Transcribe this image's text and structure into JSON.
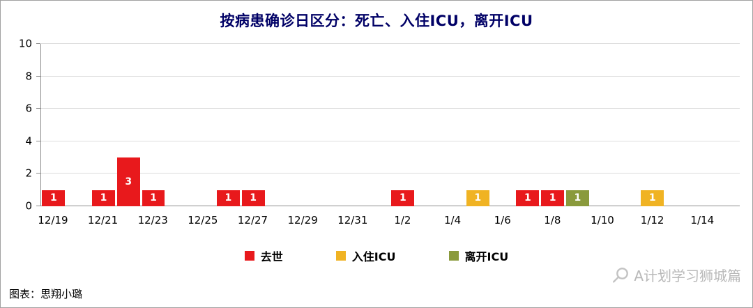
{
  "footer": {
    "source": "图表：思翔小璐"
  },
  "watermark": {
    "text": "A计划学习狮城篇",
    "icon": "magnifier-icon"
  },
  "colors": {
    "deaths": "#e8191c",
    "icu_in": "#f0b323",
    "icu_out": "#8a9a3c",
    "title": "#000066",
    "gridline": "#dcdcdc"
  },
  "legend": [
    {
      "key": "deaths",
      "label": "去世",
      "color": "#e8191c"
    },
    {
      "key": "icu-in",
      "label": "入住ICU",
      "color": "#f0b323"
    },
    {
      "key": "icu-out",
      "label": "离开ICU",
      "color": "#8a9a3c"
    }
  ],
  "chart_data": {
    "type": "bar",
    "title": "按病患确诊日区分：死亡、入住ICU，离开ICU",
    "categories": [
      "12/19",
      "12/20",
      "12/21",
      "12/22",
      "12/23",
      "12/24",
      "12/25",
      "12/26",
      "12/27",
      "12/28",
      "12/29",
      "12/30",
      "12/31",
      "1/1",
      "1/2",
      "1/3",
      "1/4",
      "1/5",
      "1/6",
      "1/7",
      "1/8",
      "1/9",
      "1/10",
      "1/11",
      "1/12",
      "1/13",
      "1/14",
      "1/15"
    ],
    "x_tick_every": 2,
    "x_tick_labels": [
      "12/19",
      "12/21",
      "12/23",
      "12/25",
      "12/27",
      "12/29",
      "12/31",
      "1/2",
      "1/4",
      "1/6",
      "1/8",
      "1/10",
      "1/12",
      "1/14"
    ],
    "ylim": [
      0,
      10
    ],
    "yticks": [
      0,
      2,
      4,
      6,
      8,
      10
    ],
    "grid": true,
    "legend_position": "bottom",
    "bar_value_labels": true,
    "series": [
      {
        "name": "去世",
        "key": "deaths",
        "color": "#e8191c",
        "values": [
          1,
          0,
          1,
          3,
          1,
          0,
          0,
          1,
          1,
          0,
          0,
          0,
          0,
          0,
          1,
          0,
          0,
          0,
          0,
          1,
          1,
          0,
          0,
          0,
          0,
          0,
          0,
          0
        ]
      },
      {
        "name": "入住ICU",
        "key": "icu-in",
        "color": "#f0b323",
        "values": [
          0,
          0,
          0,
          0,
          0,
          0,
          0,
          0,
          0,
          0,
          0,
          0,
          0,
          0,
          0,
          0,
          0,
          1,
          0,
          0,
          0,
          0,
          0,
          0,
          1,
          0,
          0,
          0
        ]
      },
      {
        "name": "离开ICU",
        "key": "icu-out",
        "color": "#8a9a3c",
        "values": [
          0,
          0,
          0,
          0,
          0,
          0,
          0,
          0,
          0,
          0,
          0,
          0,
          0,
          0,
          0,
          0,
          0,
          0,
          0,
          0,
          0,
          1,
          0,
          0,
          0,
          0,
          0,
          0
        ]
      }
    ]
  }
}
